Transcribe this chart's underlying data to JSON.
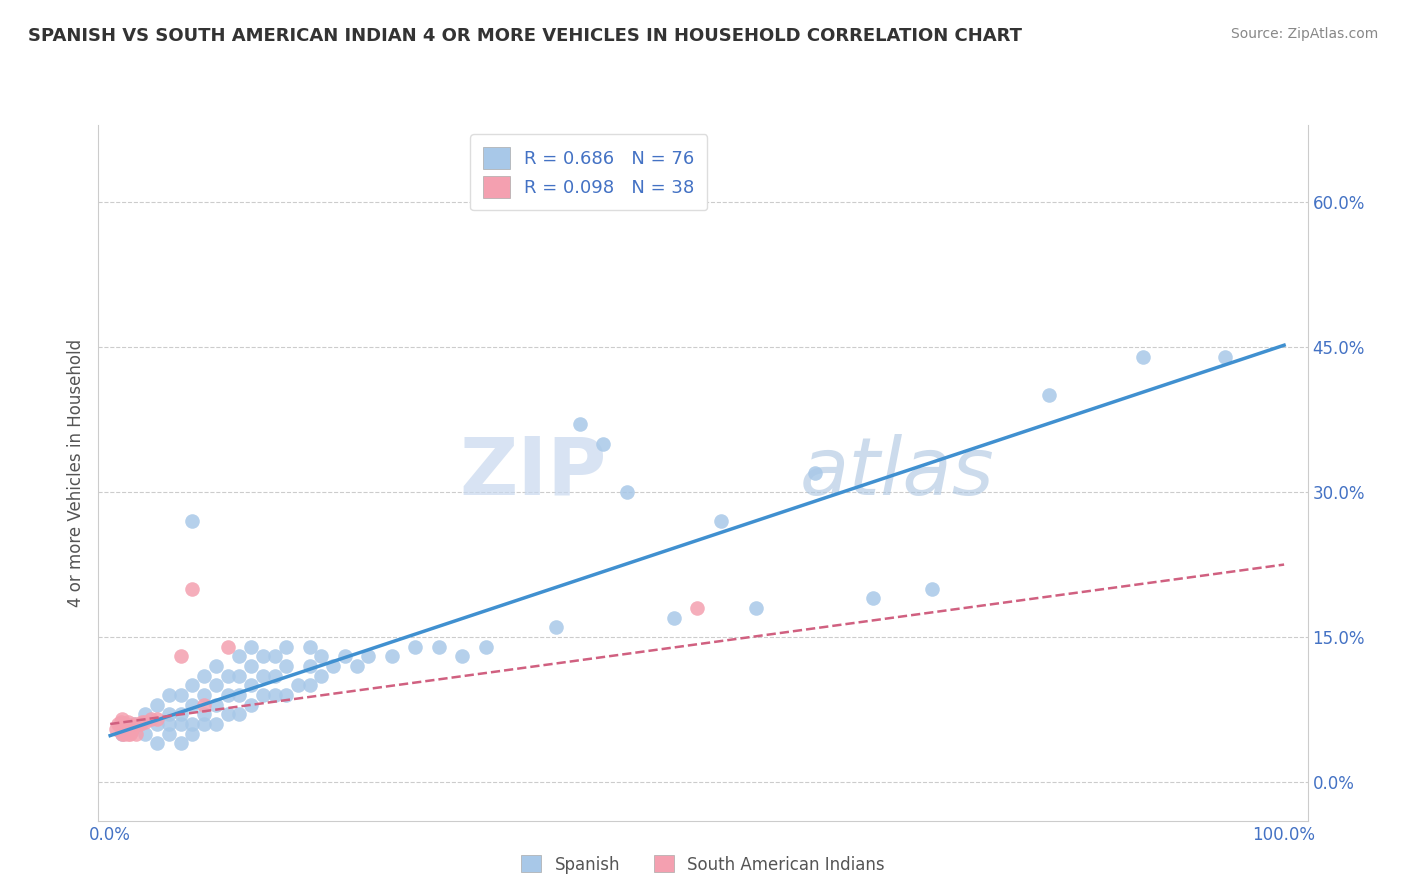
{
  "title": "SPANISH VS SOUTH AMERICAN INDIAN 4 OR MORE VEHICLES IN HOUSEHOLD CORRELATION CHART",
  "source": "Source: ZipAtlas.com",
  "ylabel": "4 or more Vehicles in Household",
  "watermark_zip": "ZIP",
  "watermark_atlas": "atlas",
  "legend_r1": "R = 0.686",
  "legend_n1": "N = 76",
  "legend_r2": "R = 0.098",
  "legend_n2": "N = 38",
  "legend_label1": "Spanish",
  "legend_label2": "South American Indians",
  "ytick_labels": [
    "0.0%",
    "15.0%",
    "30.0%",
    "45.0%",
    "60.0%"
  ],
  "ytick_values": [
    0.0,
    0.15,
    0.3,
    0.45,
    0.6
  ],
  "xlim": [
    -0.01,
    1.02
  ],
  "ylim": [
    -0.04,
    0.68
  ],
  "blue_color": "#a8c8e8",
  "pink_color": "#f4a0b0",
  "blue_line_color": "#4090d0",
  "pink_line_color": "#d06080",
  "blue_line_x0": 0.0,
  "blue_line_y0": 0.048,
  "blue_line_x1": 1.0,
  "blue_line_y1": 0.452,
  "pink_line_x0": 0.0,
  "pink_line_y0": 0.06,
  "pink_line_x1": 1.0,
  "pink_line_y1": 0.225,
  "spanish_x": [
    0.01,
    0.02,
    0.03,
    0.03,
    0.04,
    0.04,
    0.04,
    0.05,
    0.05,
    0.05,
    0.05,
    0.06,
    0.06,
    0.06,
    0.06,
    0.07,
    0.07,
    0.07,
    0.07,
    0.07,
    0.08,
    0.08,
    0.08,
    0.08,
    0.09,
    0.09,
    0.09,
    0.09,
    0.1,
    0.1,
    0.1,
    0.11,
    0.11,
    0.11,
    0.11,
    0.12,
    0.12,
    0.12,
    0.12,
    0.13,
    0.13,
    0.13,
    0.14,
    0.14,
    0.14,
    0.15,
    0.15,
    0.15,
    0.16,
    0.17,
    0.17,
    0.17,
    0.18,
    0.18,
    0.19,
    0.2,
    0.21,
    0.22,
    0.24,
    0.26,
    0.28,
    0.3,
    0.32,
    0.38,
    0.4,
    0.42,
    0.44,
    0.48,
    0.52,
    0.55,
    0.6,
    0.65,
    0.7,
    0.8,
    0.88,
    0.95
  ],
  "spanish_y": [
    0.05,
    0.06,
    0.05,
    0.07,
    0.04,
    0.06,
    0.08,
    0.05,
    0.06,
    0.07,
    0.09,
    0.04,
    0.06,
    0.07,
    0.09,
    0.05,
    0.06,
    0.08,
    0.1,
    0.27,
    0.06,
    0.07,
    0.09,
    0.11,
    0.06,
    0.08,
    0.1,
    0.12,
    0.07,
    0.09,
    0.11,
    0.07,
    0.09,
    0.11,
    0.13,
    0.08,
    0.1,
    0.12,
    0.14,
    0.09,
    0.11,
    0.13,
    0.09,
    0.11,
    0.13,
    0.09,
    0.12,
    0.14,
    0.1,
    0.1,
    0.12,
    0.14,
    0.11,
    0.13,
    0.12,
    0.13,
    0.12,
    0.13,
    0.13,
    0.14,
    0.14,
    0.13,
    0.14,
    0.16,
    0.37,
    0.35,
    0.3,
    0.17,
    0.27,
    0.18,
    0.32,
    0.19,
    0.2,
    0.4,
    0.44,
    0.44
  ],
  "sam_x": [
    0.005,
    0.007,
    0.008,
    0.009,
    0.01,
    0.01,
    0.01,
    0.01,
    0.011,
    0.011,
    0.012,
    0.012,
    0.013,
    0.013,
    0.014,
    0.014,
    0.015,
    0.015,
    0.015,
    0.016,
    0.017,
    0.017,
    0.018,
    0.018,
    0.019,
    0.02,
    0.021,
    0.022,
    0.025,
    0.027,
    0.03,
    0.035,
    0.04,
    0.06,
    0.07,
    0.08,
    0.1,
    0.5
  ],
  "sam_y": [
    0.055,
    0.06,
    0.058,
    0.062,
    0.05,
    0.055,
    0.06,
    0.065,
    0.052,
    0.058,
    0.05,
    0.055,
    0.055,
    0.06,
    0.052,
    0.058,
    0.05,
    0.056,
    0.062,
    0.055,
    0.05,
    0.057,
    0.052,
    0.058,
    0.055,
    0.058,
    0.06,
    0.05,
    0.06,
    0.062,
    0.062,
    0.065,
    0.065,
    0.13,
    0.2,
    0.08,
    0.14,
    0.18
  ]
}
